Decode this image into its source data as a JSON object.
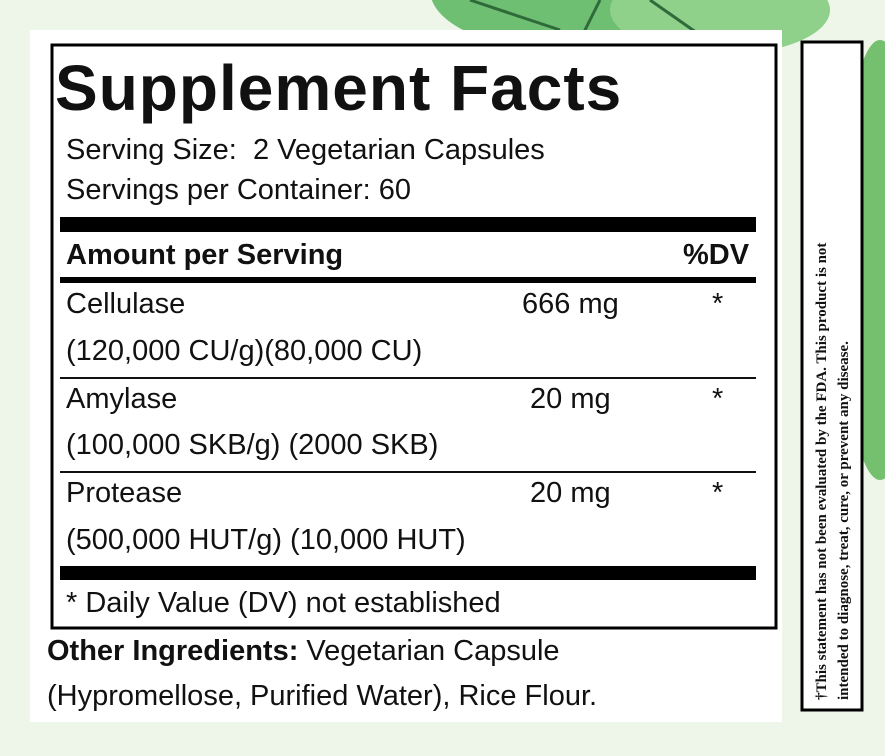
{
  "title": "Supplement Facts",
  "serving_size": "Serving Size:  2 Vegetarian Capsules",
  "servings_per_container": "Servings per Container: 60",
  "header": {
    "amount": "Amount per Serving",
    "dv": "%DV"
  },
  "rows": [
    {
      "name": "Cellulase",
      "detail": "(120,000 CU/g)(80,000 CU)",
      "amount": "666 mg",
      "dv": "*"
    },
    {
      "name": "Amylase",
      "detail": "(100,000 SKB/g) (2000 SKB)",
      "amount": "20 mg",
      "dv": "*"
    },
    {
      "name": "Protease",
      "detail": "(500,000 HUT/g) (10,000 HUT)",
      "amount": "20 mg",
      "dv": "*"
    }
  ],
  "footnote": "* Daily Value (DV) not established",
  "other_ingredients": {
    "label": "Other Ingredients:",
    "lines": [
      "Vegetarian Capsule",
      "(Hypromellose, Purified Water), Rice Flour."
    ]
  },
  "disclaimer": [
    "†This statement has not been evaluated by the FDA. This product  is not",
    "intended to diagnose, treat, cure, or prevent any disease."
  ]
}
